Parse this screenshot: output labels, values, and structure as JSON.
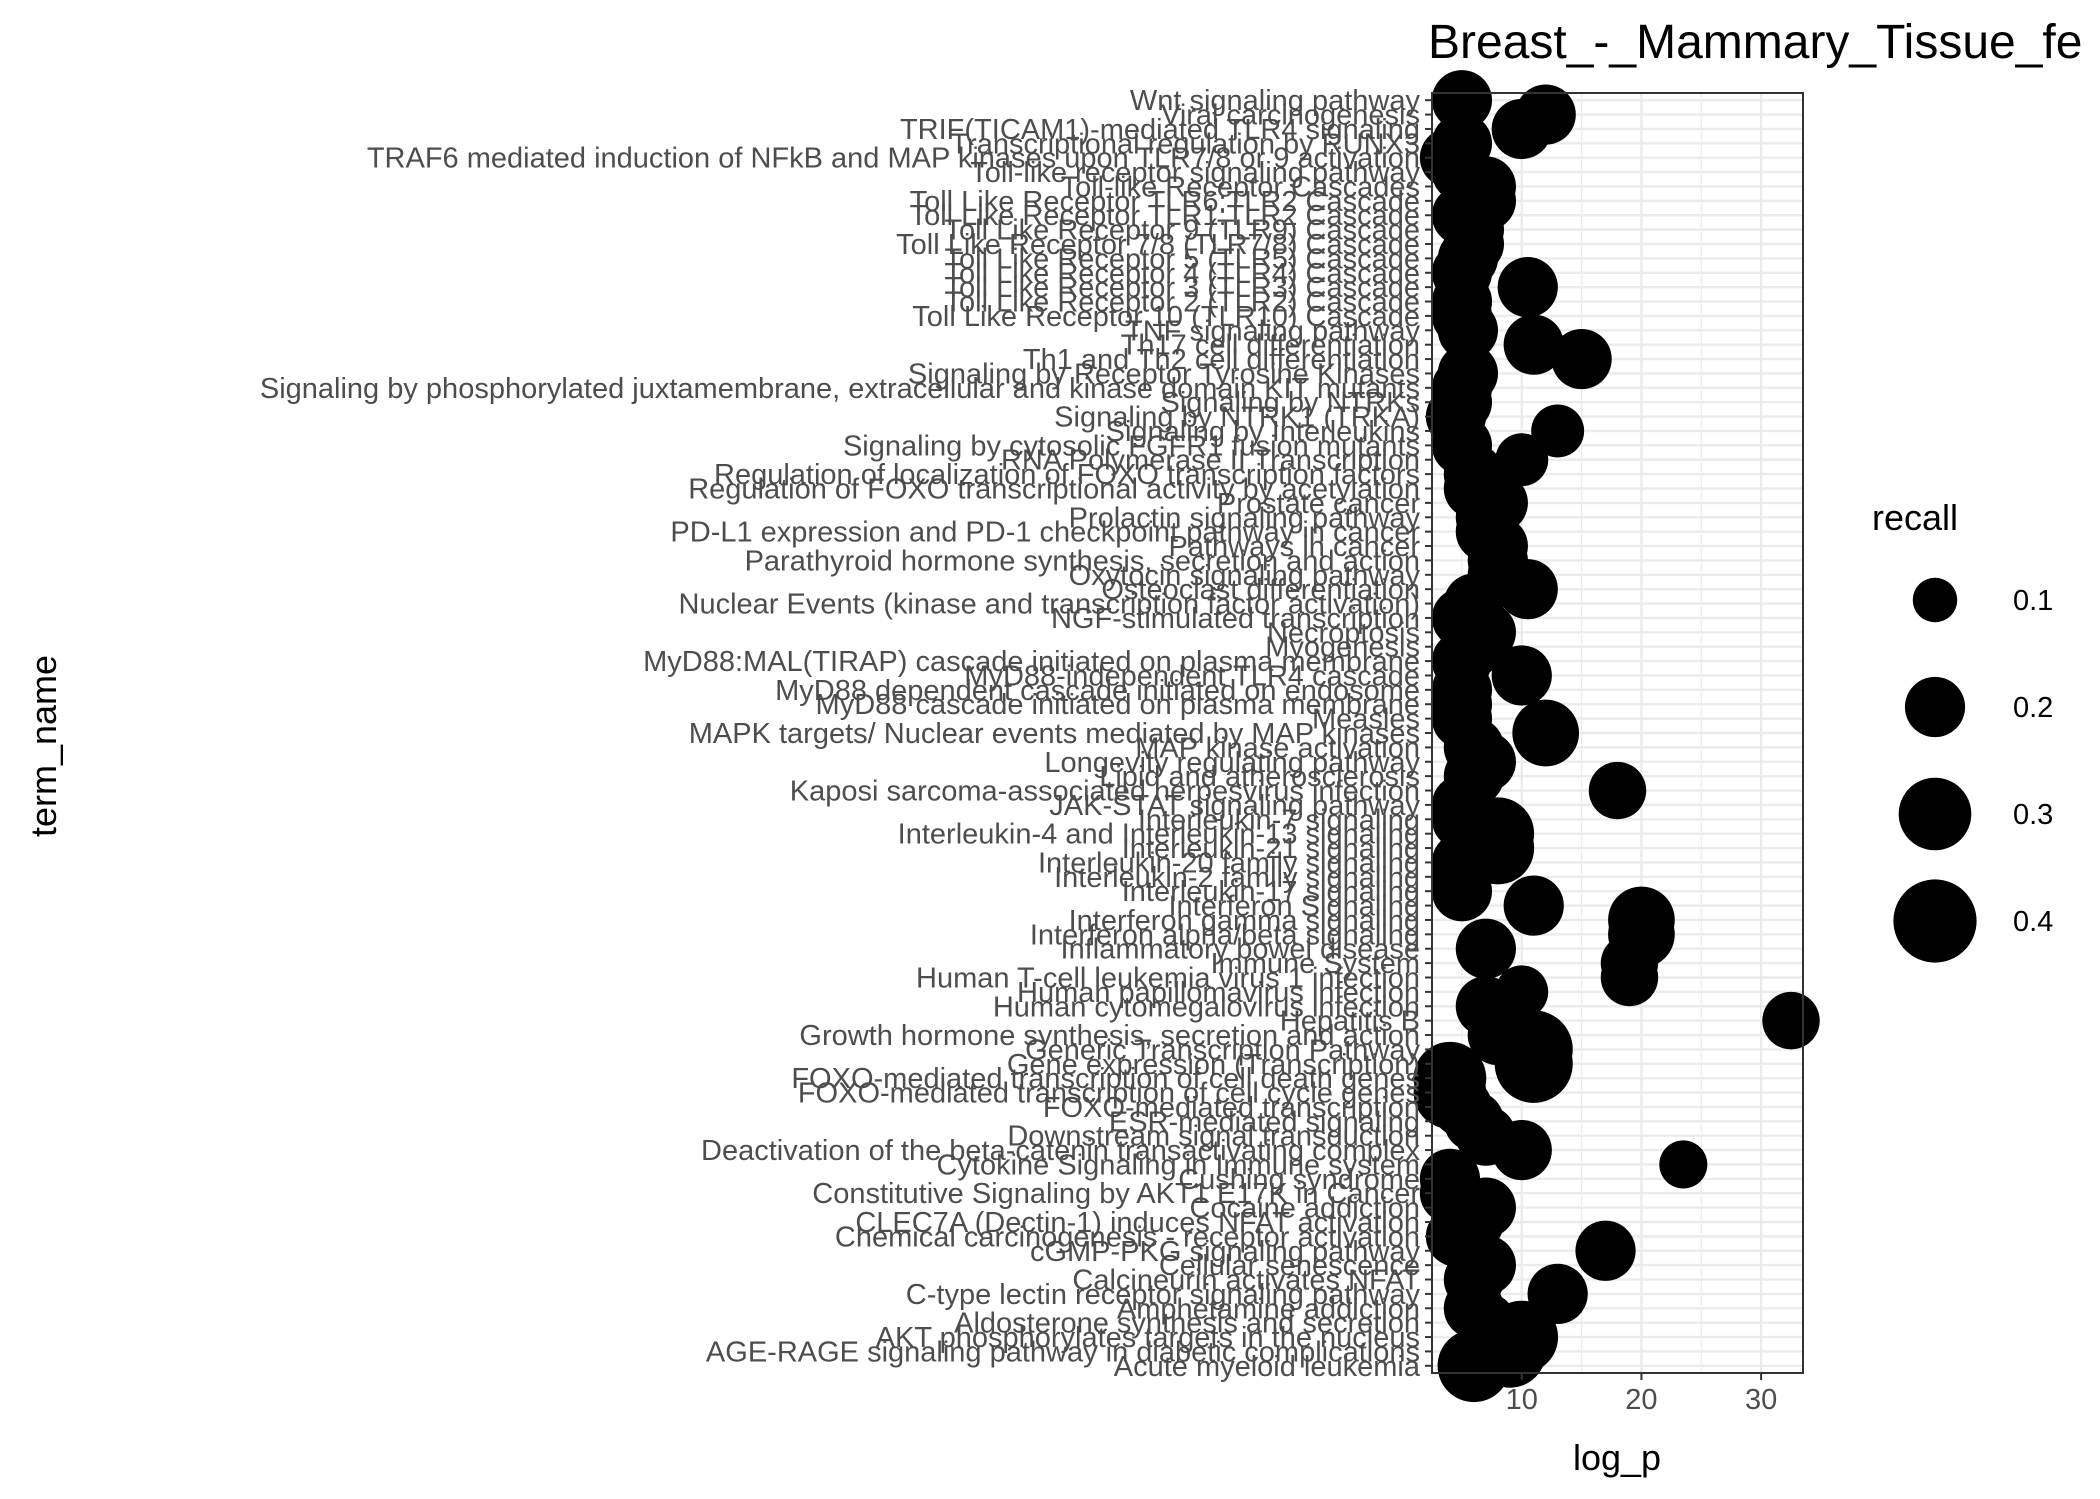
{
  "chart_data": {
    "type": "scatter",
    "title": "Breast_-_Mammary_Tissue_fe",
    "xlabel": "log_p",
    "ylabel": "term_name",
    "xlim": [
      2.5,
      33.5
    ],
    "xticks": [
      10,
      20,
      30
    ],
    "grid": true,
    "legend": {
      "title": "recall",
      "placement": "right",
      "values": [
        0.1,
        0.2,
        0.3,
        0.4
      ],
      "labels": [
        "0.1",
        "0.2",
        "0.3",
        "0.4"
      ]
    },
    "marker_color": "#000000",
    "size_range": [
      0.05,
      0.45
    ],
    "terms": [
      "Acute myeloid leukemia",
      "AGE-RAGE signaling pathway in diabetic complications",
      "AKT phosphorylates targets in the nucleus",
      "Aldosterone synthesis and secretion",
      "Amphetamine addiction",
      "C-type lectin receptor signaling pathway",
      "Calcineurin activates NFAT",
      "Cellular senescence",
      "cGMP-PKG signaling pathway",
      "Chemical carcinogenesis - receptor activation",
      "CLEC7A (Dectin-1) induces NFAT activation",
      "Cocaine addiction",
      "Constitutive Signaling by AKT1 E17K in Cancer",
      "Cushing syndrome",
      "Cytokine Signaling in Immune system",
      "Deactivation of the beta-catenin transactivating complex",
      "Downstream signal transduction",
      "ESR-mediated signaling",
      "FOXO-mediated transcription",
      "FOXO-mediated transcription of cell cycle genes",
      "FOXO-mediated transcription of cell death genes",
      "Gene expression (Transcription)",
      "Generic Transcription Pathway",
      "Growth hormone synthesis, secretion and action",
      "Hepatitis B",
      "Human cytomegalovirus infection",
      "Human papillomavirus infection",
      "Human T-cell leukemia virus 1 infection",
      "Immune System",
      "Inflammatory bowel disease",
      "Interferon alpha/beta signaling",
      "Interferon gamma signaling",
      "Interferon Signaling",
      "Interleukin-17 signaling",
      "Interleukin-2 family signaling",
      "Interleukin-20 family signaling",
      "Interleukin-21 signaling",
      "Interleukin-4 and Interleukin-13 signaling",
      "Interleukin-7 signaling",
      "JAK-STAT signaling pathway",
      "Kaposi sarcoma-associated herpesvirus infection",
      "Lipid and atherosclerosis",
      "Longevity regulating pathway",
      "MAP kinase activation",
      "MAPK targets/ Nuclear events mediated by MAP kinases",
      "Measles",
      "MyD88 cascade initiated on plasma membrane",
      "MyD88 dependent cascade initiated on endosome",
      "MyD88-independent TLR4 cascade",
      "MyD88:MAL(TIRAP) cascade initiated on plasma membrane",
      "Myogenesis",
      "Necroptosis",
      "NGF-stimulated transcription",
      "Nuclear Events (kinase and transcription factor activation)",
      "Osteoclast differentiation",
      "Oxytocin signaling pathway",
      "Parathyroid hormone synthesis, secretion and action",
      "Pathways in cancer",
      "PD-L1 expression and PD-1 checkpoint pathway in cancer",
      "Prolactin signaling pathway",
      "Prostate cancer",
      "Regulation of FOXO transcriptional activity by acetylation",
      "Regulation of localization of FOXO transcription factors",
      "RNA Polymerase II Transcription",
      "Signaling by cytosolic FGFR1 fusion mutants",
      "Signaling by Interleukins",
      "Signaling by NTRK1 (TRKA)",
      "Signaling by NTRKs",
      "Signaling by phosphorylated juxtamembrane, extracellular and kinase domain KIT mutants",
      "Signaling by Receptor Tyrosine Kinases",
      "Th1 and Th2 cell differentiation",
      "Th17 cell differentiation",
      "TNF signaling pathway",
      "Toll Like Receptor 10 (TLR10) Cascade",
      "Toll Like Receptor 2 (TLR2) Cascade",
      "Toll Like Receptor 3 (TLR3) Cascade",
      "Toll Like Receptor 4 (TLR4) Cascade",
      "Toll Like Receptor 5 (TLR5) Cascade",
      "Toll Like Receptor 7/8 (TLR7/8) Cascade",
      "Toll Like Receptor 9 (TLR9) Cascade",
      "Toll Like Receptor TLR1:TLR2 Cascade",
      "Toll Like Receptor TLR6:TLR2 Cascade",
      "Toll-like Receptor Cascades",
      "Toll-like receptor signaling pathway",
      "TRAF6 mediated induction of NFkB and MAP kinases upon TLR7/8 or 9 activation",
      "Transcriptional regulation by RUNX3",
      "TRIF(TICAM1)-mediated TLR4 signaling",
      "Viral carcinogenesis",
      "Wnt signaling pathway"
    ],
    "log_p": [
      6.0,
      9.0,
      10.0,
      7.0,
      6.0,
      13.0,
      6.0,
      7.0,
      17.0,
      4.5,
      6.0,
      7.0,
      4.0,
      4.0,
      23.5,
      10.0,
      7.0,
      6.0,
      5.0,
      4.0,
      4.0,
      11.0,
      11.0,
      8.0,
      32.5,
      7.0,
      10.0,
      19.0,
      19.0,
      7.0,
      20.0,
      20.0,
      11.0,
      5.0,
      5.0,
      5.0,
      8.0,
      8.0,
      5.0,
      5.0,
      18.0,
      6.0,
      7.0,
      6.0,
      12.0,
      5.0,
      5.0,
      5.0,
      10.0,
      5.0,
      6.0,
      7.0,
      5.0,
      6.0,
      10.5,
      8.0,
      8.0,
      8.0,
      7.0,
      7.0,
      8.0,
      6.0,
      6.0,
      10.0,
      5.0,
      13.0,
      4.5,
      5.0,
      5.0,
      5.5,
      15.0,
      11.0,
      5.5,
      5.0,
      5.0,
      10.5,
      5.0,
      5.5,
      6.0,
      6.0,
      5.0,
      7.0,
      7.0,
      5.0,
      4.0,
      5.0,
      10.0,
      12.0,
      5.0
    ],
    "recall": [
      0.3,
      0.3,
      0.3,
      0.2,
      0.2,
      0.2,
      0.2,
      0.2,
      0.2,
      0.2,
      0.2,
      0.2,
      0.2,
      0.2,
      0.12,
      0.2,
      0.2,
      0.2,
      0.2,
      0.3,
      0.3,
      0.35,
      0.35,
      0.2,
      0.18,
      0.2,
      0.15,
      0.18,
      0.18,
      0.2,
      0.25,
      0.25,
      0.2,
      0.2,
      0.2,
      0.2,
      0.3,
      0.3,
      0.2,
      0.2,
      0.18,
      0.2,
      0.2,
      0.2,
      0.25,
      0.2,
      0.2,
      0.2,
      0.2,
      0.2,
      0.2,
      0.2,
      0.2,
      0.2,
      0.2,
      0.2,
      0.2,
      0.2,
      0.2,
      0.2,
      0.2,
      0.2,
      0.2,
      0.15,
      0.2,
      0.15,
      0.2,
      0.2,
      0.2,
      0.2,
      0.2,
      0.2,
      0.2,
      0.2,
      0.2,
      0.2,
      0.2,
      0.2,
      0.2,
      0.2,
      0.2,
      0.2,
      0.2,
      0.2,
      0.2,
      0.2,
      0.2,
      0.2,
      0.2
    ]
  }
}
